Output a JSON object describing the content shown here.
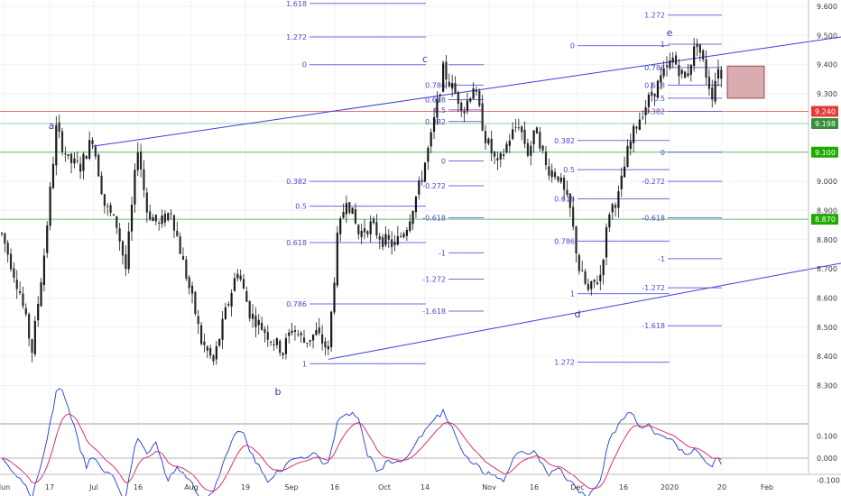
{
  "chart_data": {
    "type": "candlestick",
    "ylim": [
      8.25,
      9.65
    ],
    "price_ticks": [
      "9.600",
      "9.500",
      "9.400",
      "9.300",
      "9.200",
      "9.100",
      "9.000",
      "8.900",
      "8.800",
      "8.700",
      "8.600",
      "8.500",
      "8.400",
      "8.300"
    ],
    "price_tick_values": [
      9.6,
      9.5,
      9.4,
      9.3,
      9.2,
      9.1,
      9.0,
      8.9,
      8.8,
      8.7,
      8.6,
      8.5,
      8.4,
      8.3
    ],
    "x_ticks": [
      "Jun",
      "17",
      "Jul",
      "16",
      "Aug",
      "19",
      "Sep",
      "16",
      "Oct",
      "14",
      "Nov",
      "16",
      "Dec",
      "16",
      "2020",
      "20",
      "Feb"
    ],
    "price_tags": [
      {
        "label": "9.240",
        "value": 9.24,
        "color": "#e53935"
      },
      {
        "label": "9.198",
        "value": 9.198,
        "color": "#388e3c"
      },
      {
        "label": "9.100",
        "value": 9.1,
        "color": "#1faa00"
      },
      {
        "label": "8.870",
        "value": 8.87,
        "color": "#1faa00"
      }
    ],
    "horizontal_lines": [
      {
        "value": 9.24,
        "color": "#e57373"
      },
      {
        "value": 9.198,
        "color": "#a5d6a7"
      },
      {
        "value": 9.1,
        "color": "#66bb6a"
      },
      {
        "value": 8.87,
        "color": "#66bb6a"
      }
    ],
    "wave_labels": [
      {
        "label": "a",
        "day": 22,
        "price": 9.2
      },
      {
        "label": "b",
        "day": 93,
        "price": 8.33
      },
      {
        "label": "c",
        "day": 146,
        "price": 9.42
      },
      {
        "label": "d",
        "day": 198,
        "price": 8.55
      },
      {
        "label": "e",
        "day": 230,
        "price": 9.53
      }
    ],
    "fib_sets": [
      {
        "levels": [
          {
            "label": "1.618",
            "price": 9.61
          },
          {
            "label": "1.272",
            "price": 9.495
          },
          {
            "label": "0.5",
            "price": 8.915
          },
          {
            "label": "0.618",
            "price": 8.79
          },
          {
            "label": "0.786",
            "price": 8.58
          },
          {
            "label": "1",
            "price": 8.375
          },
          {
            "label": "0",
            "price": 9.4
          },
          {
            "label": "0.382",
            "price": 9.0
          }
        ]
      },
      {
        "levels": [
          {
            "label": "1",
            "price": 9.4
          },
          {
            "label": "0.786",
            "price": 9.33
          },
          {
            "label": "0.618",
            "price": 9.28
          },
          {
            "label": "0.5",
            "price": 9.245
          },
          {
            "label": "0.382",
            "price": 9.205
          },
          {
            "label": "0",
            "price": 9.07
          },
          {
            "label": "-0.272",
            "price": 8.985
          },
          {
            "label": "-0.618",
            "price": 8.875
          },
          {
            "label": "-1",
            "price": 8.755
          },
          {
            "label": "-1.272",
            "price": 8.665
          },
          {
            "label": "-1.618",
            "price": 8.555
          }
        ]
      },
      {
        "levels": [
          {
            "label": "0",
            "price": 9.465
          },
          {
            "label": "0.382",
            "price": 9.14
          },
          {
            "label": "0.5",
            "price": 9.04
          },
          {
            "label": "0.618",
            "price": 8.94
          },
          {
            "label": "0.786",
            "price": 8.795
          },
          {
            "label": "1",
            "price": 8.615
          },
          {
            "label": "1.272",
            "price": 8.38
          }
        ]
      },
      {
        "levels": [
          {
            "label": "1.272",
            "price": 9.57
          },
          {
            "label": "1",
            "price": 9.47
          },
          {
            "label": "0.786",
            "price": 9.39
          },
          {
            "label": "0.618",
            "price": 9.33
          },
          {
            "label": "0.5",
            "price": 9.285
          },
          {
            "label": "0.382",
            "price": 9.24
          },
          {
            "label": "0",
            "price": 9.1
          },
          {
            "label": "-0.272",
            "price": 9.0
          },
          {
            "label": "-0.618",
            "price": 8.875
          },
          {
            "label": "-1",
            "price": 8.735
          },
          {
            "label": "-1.272",
            "price": 8.635
          },
          {
            "label": "-1.618",
            "price": 8.505
          }
        ]
      }
    ],
    "channel_lines": [
      {
        "from": {
          "day": 30,
          "price": 9.12
        },
        "to": {
          "day": 314,
          "price": 9.55
        }
      },
      {
        "from": {
          "day": 108,
          "price": 8.39
        },
        "to": {
          "day": 314,
          "price": 8.79
        }
      }
    ],
    "oscillator": {
      "ylim": [
        -0.12,
        0.13
      ],
      "ticks": [
        "0.100",
        "0.000",
        "-0.100"
      ],
      "tick_values": [
        0.1,
        0.0,
        -0.1
      ]
    }
  }
}
